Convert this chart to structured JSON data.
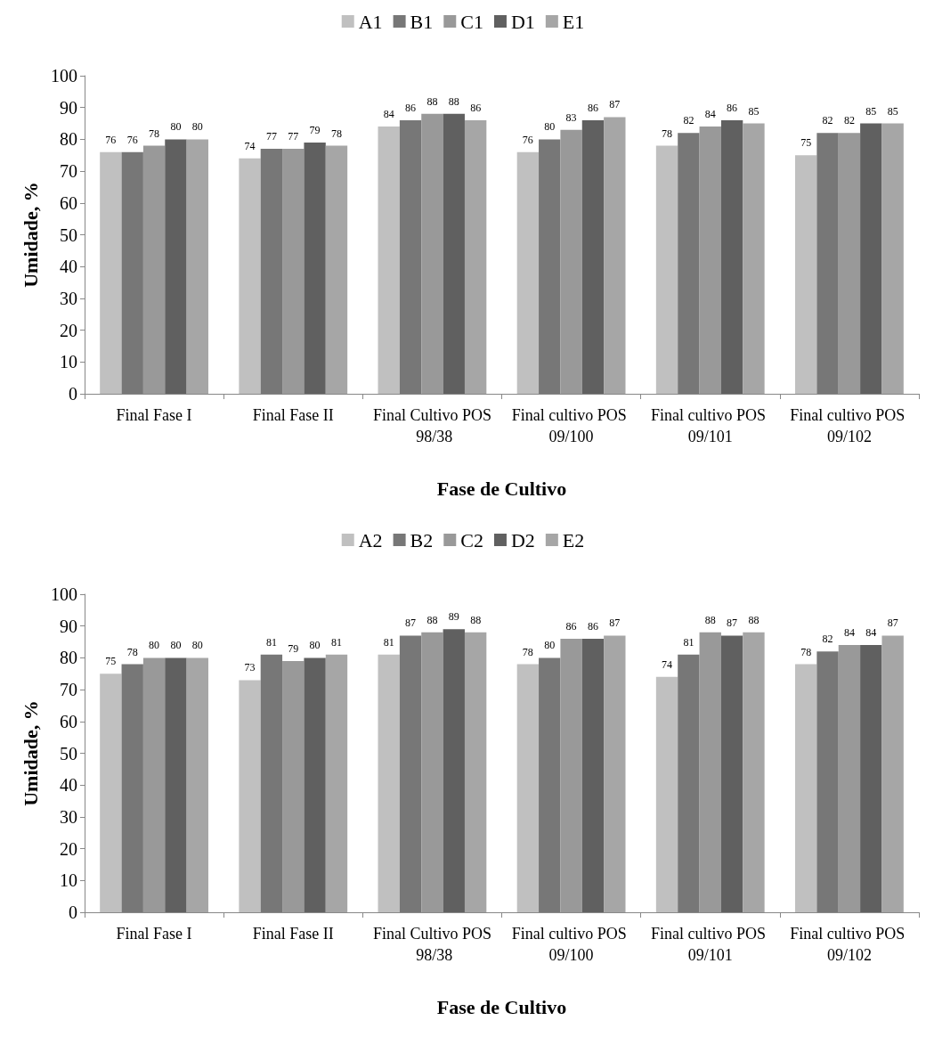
{
  "chart_data": [
    {
      "type": "bar",
      "xlabel": "Fase de Cultivo",
      "ylabel": "Umidade, %",
      "categories": [
        "Final Fase I",
        "Final Fase II",
        "Final Cultivo POS 98/38",
        "Final cultivo POS 09/100",
        "Final cultivo POS 09/101",
        "Final cultivo POS 09/102"
      ],
      "series": [
        {
          "name": "A1",
          "color": "#c0c0c0",
          "values": [
            76,
            74,
            84,
            76,
            78,
            75
          ]
        },
        {
          "name": "B1",
          "color": "#777777",
          "values": [
            76,
            77,
            86,
            80,
            82,
            82
          ]
        },
        {
          "name": "C1",
          "color": "#999999",
          "values": [
            78,
            77,
            88,
            83,
            84,
            82
          ]
        },
        {
          "name": "D1",
          "color": "#606060",
          "values": [
            80,
            79,
            88,
            86,
            86,
            85
          ]
        },
        {
          "name": "E1",
          "color": "#a6a6a6",
          "values": [
            80,
            78,
            86,
            87,
            85,
            85
          ]
        }
      ],
      "ylim": [
        0,
        100
      ],
      "yticks": [
        0,
        10,
        20,
        30,
        40,
        50,
        60,
        70,
        80,
        90,
        100
      ],
      "grid": false,
      "legend": "top",
      "data_labels": true
    },
    {
      "type": "bar",
      "xlabel": "Fase de Cultivo",
      "ylabel": "Umidade, %",
      "categories": [
        "Final Fase I",
        "Final Fase II",
        "Final Cultivo POS 98/38",
        "Final cultivo POS 09/100",
        "Final cultivo POS 09/101",
        "Final cultivo POS 09/102"
      ],
      "series": [
        {
          "name": "A2",
          "color": "#c0c0c0",
          "values": [
            75,
            73,
            81,
            78,
            74,
            78
          ]
        },
        {
          "name": "B2",
          "color": "#777777",
          "values": [
            78,
            81,
            87,
            80,
            81,
            82
          ]
        },
        {
          "name": "C2",
          "color": "#999999",
          "values": [
            80,
            79,
            88,
            86,
            88,
            84
          ]
        },
        {
          "name": "D2",
          "color": "#606060",
          "values": [
            80,
            80,
            89,
            86,
            87,
            84
          ]
        },
        {
          "name": "E2",
          "color": "#a6a6a6",
          "values": [
            80,
            81,
            88,
            87,
            88,
            87
          ]
        }
      ],
      "ylim": [
        0,
        100
      ],
      "yticks": [
        0,
        10,
        20,
        30,
        40,
        50,
        60,
        70,
        80,
        90,
        100
      ],
      "grid": false,
      "legend": "top",
      "data_labels": true
    }
  ]
}
